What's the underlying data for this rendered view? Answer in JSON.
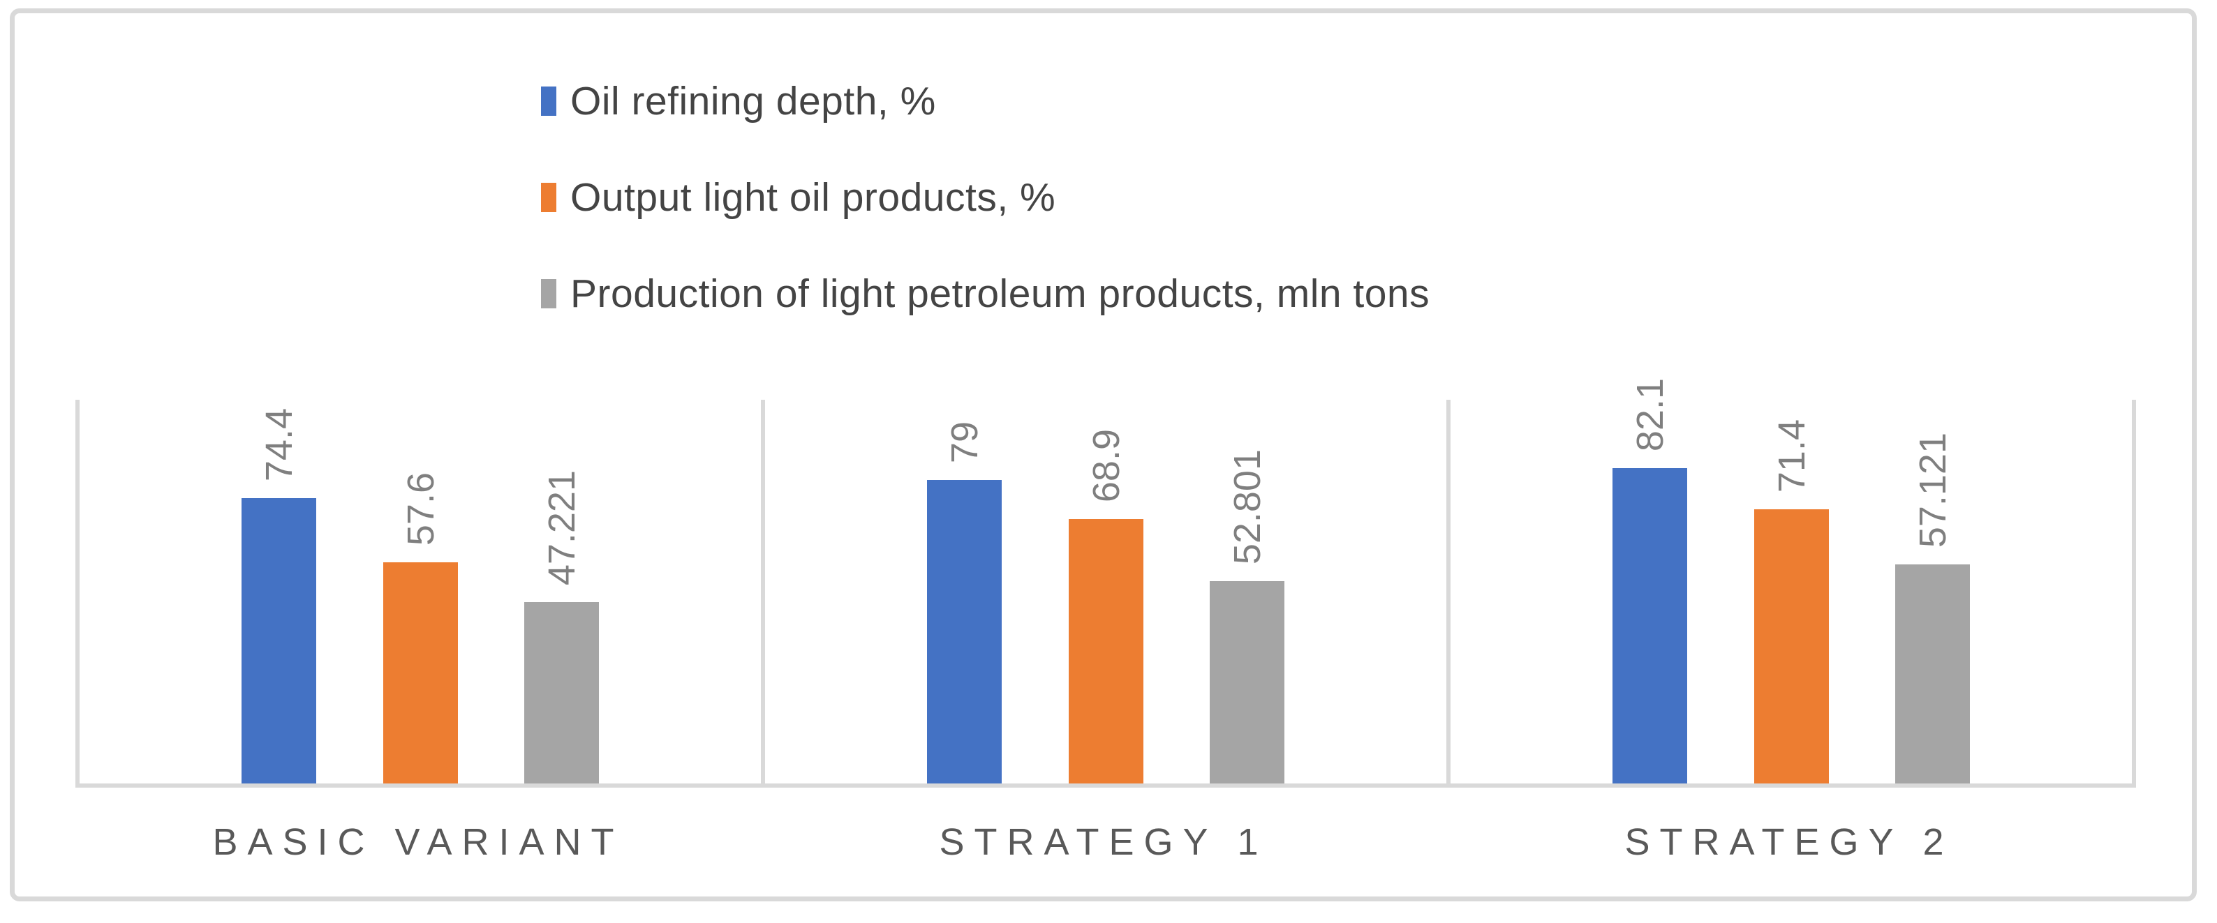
{
  "chart_data": {
    "type": "bar",
    "title": "",
    "categories": [
      "BASIC VARIANT",
      "STRATEGY 1",
      "STRATEGY 2"
    ],
    "series": [
      {
        "name": "Oil refining depth, %",
        "color": "#4472C4",
        "values": [
          74.4,
          79,
          82.1
        ],
        "labels": [
          "74.4",
          "79",
          "82.1"
        ]
      },
      {
        "name": "Output light oil products, %",
        "color": "#ED7D31",
        "values": [
          57.6,
          68.9,
          71.4
        ],
        "labels": [
          "57.6",
          "68.9",
          "71.4"
        ]
      },
      {
        "name": "Production of light petroleum products, mln tons",
        "color": "#A5A5A5",
        "values": [
          47.221,
          52.801,
          57.121
        ],
        "labels": [
          "47.221",
          "52.801",
          "57.121"
        ]
      }
    ],
    "ylim": [
      0,
      100
    ],
    "value_axis_visible": false,
    "grid": "vertical-category-boundaries",
    "axis_line_color": "#D9D9D9",
    "legend_position": "top",
    "data_label_rotation": "vertical-bottom-to-top"
  }
}
